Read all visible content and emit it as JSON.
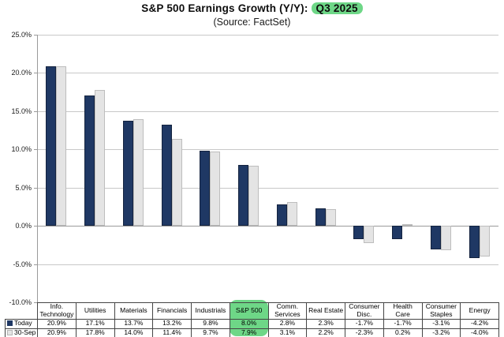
{
  "title": {
    "prefix": "S&P 500 Earnings Growth (Y/Y):",
    "highlight": "Q3 2025"
  },
  "subtitle": "(Source: FactSet)",
  "colors": {
    "today_bar": "#1F3864",
    "prev_bar": "#E4E4E4",
    "highlight_green": "#6ED787",
    "gridline": "#C8C8C8",
    "axis": "#9A9A9A"
  },
  "chart_data": {
    "type": "bar",
    "title": "S&P 500 Earnings Growth (Y/Y): Q3 2025",
    "subtitle": "(Source: FactSet)",
    "categories": [
      "Info. Technology",
      "Utilities",
      "Materials",
      "Financials",
      "Industrials",
      "S&P 500",
      "Comm. Services",
      "Real Estate",
      "Consumer Disc.",
      "Health Care",
      "Consumer Staples",
      "Energy"
    ],
    "category_header_lines": [
      "Info.\nTechnology",
      "Utilities",
      "Materials",
      "Financials",
      "Industrials",
      "S&P 500",
      "Comm.\nServices",
      "Real Estate",
      "Consumer\nDisc.",
      "Health\nCare",
      "Consumer\nStaples",
      "Energy"
    ],
    "series": [
      {
        "name": "Today",
        "color": "#1F3864",
        "values": [
          20.9,
          17.1,
          13.7,
          13.2,
          9.8,
          8.0,
          2.8,
          2.3,
          -1.7,
          -1.7,
          -3.1,
          -4.2
        ]
      },
      {
        "name": "30-Sep",
        "color": "#E4E4E4",
        "values": [
          20.9,
          17.8,
          14.0,
          11.4,
          9.7,
          7.9,
          3.1,
          2.2,
          -2.3,
          0.2,
          -3.2,
          -4.0
        ]
      }
    ],
    "value_suffix": "%",
    "ylim": [
      -10,
      25
    ],
    "ytick_step": 5,
    "ytick_labels": [
      "25.0%",
      "20.0%",
      "15.0%",
      "10.0%",
      "5.0%",
      "0.0%",
      "-5.0%",
      "-10.0%"
    ],
    "grid": true,
    "legend_position": "data-table-left",
    "highlighted_category": "S&P 500"
  }
}
